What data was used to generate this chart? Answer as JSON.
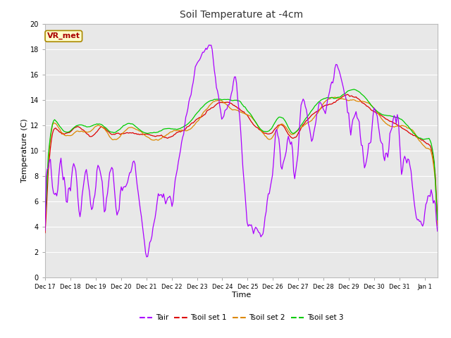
{
  "title": "Soil Temperature at -4cm",
  "xlabel": "Time",
  "ylabel": "Temperature (C)",
  "ylim": [
    0,
    20
  ],
  "annotation_text": "VR_met",
  "fig_bg_color": "#ffffff",
  "plot_bg_color": "#e8e8e8",
  "grid_color": "#ffffff",
  "colors": {
    "Tair": "#aa00ff",
    "Tsoil1": "#dd0000",
    "Tsoil2": "#dd8800",
    "Tsoil3": "#00cc00"
  },
  "legend_labels": [
    "Tair",
    "Tsoil set 1",
    "Tsoil set 2",
    "Tsoil set 3"
  ],
  "x_tick_labels": [
    "Dec 17",
    "Dec 18",
    "Dec 19",
    "Dec 20",
    "Dec 21",
    "Dec 22",
    "Dec 23",
    "Dec 24",
    "Dec 25",
    "Dec 26",
    "Dec 27",
    "Dec 28",
    "Dec 29",
    "Dec 30",
    "Dec 31",
    "Jan 1"
  ],
  "yticks": [
    0,
    2,
    4,
    6,
    8,
    10,
    12,
    14,
    16,
    18,
    20
  ]
}
